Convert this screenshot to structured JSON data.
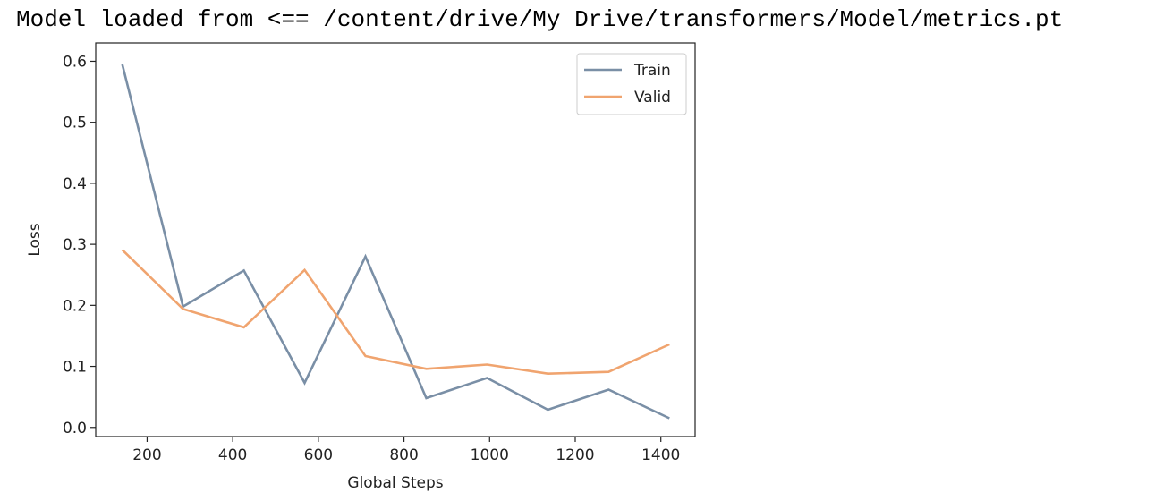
{
  "output": {
    "log_line": "Model loaded from <== /content/drive/My Drive/transformers/Model/metrics.pt"
  },
  "chart_data": {
    "type": "line",
    "title": "",
    "xlabel": "Global Steps",
    "ylabel": "Loss",
    "xlim": [
      80,
      1480
    ],
    "ylim": [
      -0.015,
      0.63
    ],
    "xticks": [
      200,
      400,
      600,
      800,
      1000,
      1200,
      1400
    ],
    "yticks": [
      0.0,
      0.1,
      0.2,
      0.3,
      0.4,
      0.5,
      0.6
    ],
    "xtick_labels": [
      "200",
      "400",
      "600",
      "800",
      "1000",
      "1200",
      "1400"
    ],
    "ytick_labels": [
      "0.0",
      "0.1",
      "0.2",
      "0.3",
      "0.4",
      "0.5",
      "0.6"
    ],
    "x": [
      142,
      284,
      426,
      568,
      710,
      852,
      994,
      1136,
      1278,
      1420
    ],
    "series": [
      {
        "name": "Train",
        "color": "#7a8fa6",
        "values": [
          0.595,
          0.198,
          0.257,
          0.073,
          0.28,
          0.048,
          0.081,
          0.029,
          0.062,
          0.015
        ]
      },
      {
        "name": "Valid",
        "color": "#f0a46f",
        "values": [
          0.291,
          0.194,
          0.164,
          0.258,
          0.117,
          0.096,
          0.103,
          0.088,
          0.091,
          0.136
        ]
      }
    ],
    "grid": false,
    "legend_position": "top-right"
  }
}
